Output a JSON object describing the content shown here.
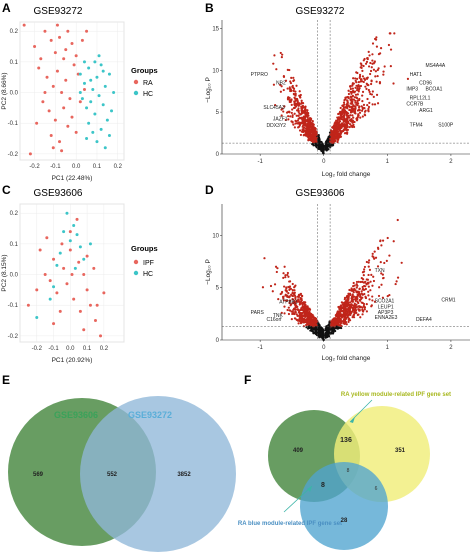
{
  "panels": {
    "A": {
      "letter": "A",
      "title": "GSE93272",
      "xlabel": "PC1 (22.48%)",
      "ylabel": "PC2 (8.66%)",
      "legend_title": "Groups",
      "legend": [
        "RA",
        "HC"
      ]
    },
    "B": {
      "letter": "B",
      "title": "GSE93272",
      "xlabel": "Log₂ fold change",
      "ylabel": "−Log₁₀ P"
    },
    "C": {
      "letter": "C",
      "title": "GSE93606",
      "xlabel": "PC1 (20.92%)",
      "ylabel": "PC2 (8.15%)",
      "legend_title": "Groups",
      "legend": [
        "IPF",
        "HC"
      ]
    },
    "D": {
      "letter": "D",
      "title": "GSE93606",
      "xlabel": "Log₂ fold change",
      "ylabel": "−Log₁₀ P"
    },
    "E": {
      "letter": "E"
    },
    "F": {
      "letter": "F"
    }
  },
  "colors": {
    "red": "#e8665e",
    "cyan": "#3cc5c8",
    "volcano_red": "#c0251a",
    "black": "#111111",
    "green": "#4e8c47",
    "blue": "#8fb7d9",
    "yellow": "#f0ee7a",
    "blue2": "#4fa4cf"
  },
  "chart_data": [
    {
      "panel": "A",
      "type": "scatter",
      "xlim": [
        -0.27,
        0.23
      ],
      "ylim": [
        -0.22,
        0.23
      ],
      "xticks": [
        -0.2,
        -0.1,
        0.0,
        0.1,
        0.2
      ],
      "yticks": [
        -0.2,
        -0.1,
        0.0,
        0.1,
        0.2
      ],
      "xticklabels": [
        "-0.2",
        "-0.1",
        "0.0",
        "0.1",
        "0.2"
      ],
      "yticklabels": [
        "-0.2",
        "-0.1",
        "0.0",
        "0.1",
        "0.2"
      ],
      "series": [
        {
          "name": "RA",
          "color": "#e8665e",
          "points": [
            [
              -0.2,
              0.15
            ],
            [
              -0.15,
              0.2
            ],
            [
              -0.12,
              0.17
            ],
            [
              -0.1,
              0.13
            ],
            [
              -0.08,
              0.18
            ],
            [
              -0.06,
              0.11
            ],
            [
              -0.04,
              0.2
            ],
            [
              -0.02,
              0.16
            ],
            [
              0.0,
              0.12
            ],
            [
              -0.18,
              0.08
            ],
            [
              -0.14,
              0.05
            ],
            [
              -0.11,
              0.02
            ],
            [
              -0.09,
              0.07
            ],
            [
              -0.07,
              0.0
            ],
            [
              -0.05,
              0.04
            ],
            [
              -0.03,
              -0.02
            ],
            [
              -0.01,
              0.09
            ],
            [
              0.01,
              0.06
            ],
            [
              -0.16,
              -0.03
            ],
            [
              -0.13,
              -0.06
            ],
            [
              -0.1,
              -0.09
            ],
            [
              -0.06,
              -0.05
            ],
            [
              -0.04,
              -0.11
            ],
            [
              -0.02,
              -0.08
            ],
            [
              0.02,
              -0.03
            ],
            [
              -0.12,
              -0.14
            ],
            [
              -0.08,
              -0.16
            ],
            [
              0.0,
              -0.13
            ],
            [
              -0.17,
              0.11
            ],
            [
              -0.05,
              0.14
            ],
            [
              0.03,
              0.17
            ],
            [
              -0.19,
              -0.1
            ],
            [
              -0.07,
              -0.19
            ],
            [
              -0.22,
              -0.2
            ],
            [
              -0.25,
              0.22
            ],
            [
              -0.09,
              0.22
            ],
            [
              -0.15,
              0.0
            ],
            [
              0.04,
              0.01
            ],
            [
              -0.11,
              -0.18
            ],
            [
              0.05,
              0.2
            ]
          ]
        },
        {
          "name": "HC",
          "color": "#3cc5c8",
          "points": [
            [
              0.02,
              0.06
            ],
            [
              0.04,
              0.03
            ],
            [
              0.06,
              0.08
            ],
            [
              0.08,
              0.01
            ],
            [
              0.1,
              0.05
            ],
            [
              0.12,
              0.09
            ],
            [
              0.14,
              0.02
            ],
            [
              0.16,
              0.06
            ],
            [
              0.18,
              0.0
            ],
            [
              0.03,
              -0.02
            ],
            [
              0.05,
              -0.05
            ],
            [
              0.07,
              -0.03
            ],
            [
              0.09,
              -0.07
            ],
            [
              0.11,
              -0.01
            ],
            [
              0.13,
              -0.04
            ],
            [
              0.15,
              -0.09
            ],
            [
              0.17,
              -0.06
            ],
            [
              0.06,
              -0.1
            ],
            [
              0.08,
              -0.13
            ],
            [
              0.1,
              -0.16
            ],
            [
              0.12,
              -0.12
            ],
            [
              0.14,
              -0.18
            ],
            [
              0.04,
              0.1
            ],
            [
              0.11,
              0.12
            ],
            [
              0.07,
              0.04
            ],
            [
              0.09,
              0.1
            ],
            [
              0.13,
              0.07
            ],
            [
              0.16,
              -0.14
            ],
            [
              0.05,
              -0.15
            ],
            [
              0.02,
              0.0
            ]
          ]
        }
      ]
    },
    {
      "panel": "B",
      "type": "scatter",
      "subtype": "volcano",
      "xlim": [
        -1.6,
        2.3
      ],
      "ylim": [
        0,
        16
      ],
      "xticks": [
        -1,
        0,
        1,
        2
      ],
      "yticks": [
        0,
        5,
        10,
        15
      ],
      "xticklabels": [
        "-1",
        "0",
        "1",
        "2"
      ],
      "yticklabels": [
        "0",
        "5",
        "10",
        "15"
      ],
      "vlines": [
        -0.1,
        0.1
      ],
      "hline": 1.3,
      "labels": [
        {
          "text": "PTPRO",
          "x": -1.15,
          "y": 9.3
        },
        {
          "text": "NB2",
          "x": -0.75,
          "y": 8.3
        },
        {
          "text": "SLC45A3",
          "x": -0.95,
          "y": 5.4
        },
        {
          "text": "JAZF1",
          "x": -0.8,
          "y": 4.0
        },
        {
          "text": "DDX3Y2",
          "x": -0.9,
          "y": 3.2
        },
        {
          "text": "MS4A4A",
          "x": 1.6,
          "y": 10.4
        },
        {
          "text": "HAT1",
          "x": 1.35,
          "y": 9.3
        },
        {
          "text": "CD96",
          "x": 1.5,
          "y": 8.3
        },
        {
          "text": "IMP3",
          "x": 1.3,
          "y": 7.6
        },
        {
          "text": "BCOA1",
          "x": 1.6,
          "y": 7.6
        },
        {
          "text": "RPL12L1",
          "x": 1.35,
          "y": 6.5
        },
        {
          "text": "CCR7B",
          "x": 1.3,
          "y": 5.8
        },
        {
          "text": "ARG1",
          "x": 1.5,
          "y": 5.0
        },
        {
          "text": "TFM4",
          "x": 1.35,
          "y": 3.3
        },
        {
          "text": "S100P",
          "x": 1.8,
          "y": 3.3
        }
      ]
    },
    {
      "panel": "C",
      "type": "scatter",
      "xlim": [
        -0.3,
        0.32
      ],
      "ylim": [
        -0.22,
        0.23
      ],
      "xticks": [
        -0.2,
        -0.1,
        0.0,
        0.1,
        0.2
      ],
      "yticks": [
        -0.2,
        -0.1,
        0.0,
        0.1,
        0.2
      ],
      "xticklabels": [
        "-0.2",
        "-0.1",
        "0.0",
        "0.1",
        "0.2"
      ],
      "yticklabels": [
        "-0.2",
        "-0.1",
        "0.0",
        "0.1",
        "0.2"
      ],
      "series": [
        {
          "name": "IPF",
          "color": "#e8665e",
          "points": [
            [
              -0.1,
              0.05
            ],
            [
              -0.05,
              0.1
            ],
            [
              0.0,
              0.08
            ],
            [
              0.05,
              0.04
            ],
            [
              0.08,
              0.0
            ],
            [
              0.1,
              -0.05
            ],
            [
              0.12,
              -0.1
            ],
            [
              0.15,
              -0.15
            ],
            [
              0.18,
              -0.2
            ],
            [
              -0.12,
              -0.02
            ],
            [
              -0.08,
              -0.06
            ],
            [
              -0.02,
              -0.03
            ],
            [
              0.02,
              -0.08
            ],
            [
              0.06,
              -0.12
            ],
            [
              -0.15,
              0.0
            ],
            [
              -0.2,
              -0.05
            ],
            [
              -0.25,
              -0.1
            ],
            [
              -0.18,
              0.08
            ],
            [
              0.0,
              0.14
            ],
            [
              0.04,
              0.18
            ],
            [
              -0.04,
              0.02
            ],
            [
              0.1,
              0.06
            ],
            [
              0.14,
              0.02
            ],
            [
              0.2,
              -0.06
            ],
            [
              0.16,
              -0.1
            ],
            [
              -0.06,
              -0.12
            ],
            [
              -0.1,
              -0.16
            ],
            [
              0.08,
              -0.18
            ],
            [
              -0.14,
              0.12
            ],
            [
              0.01,
              0.0
            ]
          ]
        },
        {
          "name": "HC",
          "color": "#3cc5c8",
          "points": [
            [
              -0.02,
              0.2
            ],
            [
              0.02,
              0.16
            ],
            [
              -0.04,
              0.14
            ],
            [
              0.0,
              0.11
            ],
            [
              0.04,
              0.13
            ],
            [
              -0.06,
              0.07
            ],
            [
              0.06,
              0.09
            ],
            [
              -0.08,
              0.03
            ],
            [
              0.08,
              0.05
            ],
            [
              -0.1,
              -0.04
            ],
            [
              0.03,
              0.02
            ],
            [
              -0.12,
              -0.08
            ],
            [
              -0.2,
              -0.14
            ],
            [
              0.12,
              0.1
            ]
          ]
        }
      ]
    },
    {
      "panel": "D",
      "type": "scatter",
      "subtype": "volcano",
      "xlim": [
        -1.6,
        2.3
      ],
      "ylim": [
        0,
        13
      ],
      "xticks": [
        -1,
        0,
        1,
        2
      ],
      "yticks": [
        0,
        5,
        10
      ],
      "xticklabels": [
        "-1",
        "0",
        "1",
        "2"
      ],
      "yticklabels": [
        "0",
        "5",
        "10"
      ],
      "vlines": [
        -0.1,
        0.1
      ],
      "hline": 1.3,
      "labels": [
        {
          "text": "ATP8B1",
          "x": -0.7,
          "y": 3.5
        },
        {
          "text": "PARS",
          "x": -1.15,
          "y": 2.5
        },
        {
          "text": "TNK",
          "x": -0.8,
          "y": 2.2
        },
        {
          "text": "C16orf",
          "x": -0.9,
          "y": 1.8
        },
        {
          "text": "TXN",
          "x": 0.8,
          "y": 6.5
        },
        {
          "text": "SCO2A1",
          "x": 0.8,
          "y": 3.6
        },
        {
          "text": "LEUP1",
          "x": 0.85,
          "y": 3.0
        },
        {
          "text": "AP3P3",
          "x": 0.85,
          "y": 2.5
        },
        {
          "text": "ENNA2E3",
          "x": 0.8,
          "y": 2.0
        },
        {
          "text": "CRM1",
          "x": 1.85,
          "y": 3.7
        },
        {
          "text": "DEFA4",
          "x": 1.45,
          "y": 1.8
        }
      ]
    },
    {
      "panel": "E",
      "type": "venn",
      "sets": [
        {
          "name": "GSE93606",
          "color": "#4e8c47"
        },
        {
          "name": "GSE93272",
          "color": "#8fb7d9"
        }
      ],
      "regions": [
        {
          "label": "569"
        },
        {
          "label": "552"
        },
        {
          "label": "3852"
        }
      ]
    },
    {
      "panel": "F",
      "type": "venn",
      "sets": [
        {
          "name": "RA yellow module-related IPF gene set",
          "color": "#f0ee7a"
        },
        {
          "name": "RA blue module-related IPF gene set",
          "color": "#4fa4cf"
        }
      ],
      "regions": [
        {
          "label": "409"
        },
        {
          "label": "136"
        },
        {
          "label": "351"
        },
        {
          "label": "8"
        },
        {
          "label": "8"
        },
        {
          "label": "6"
        },
        {
          "label": "28"
        }
      ]
    }
  ]
}
